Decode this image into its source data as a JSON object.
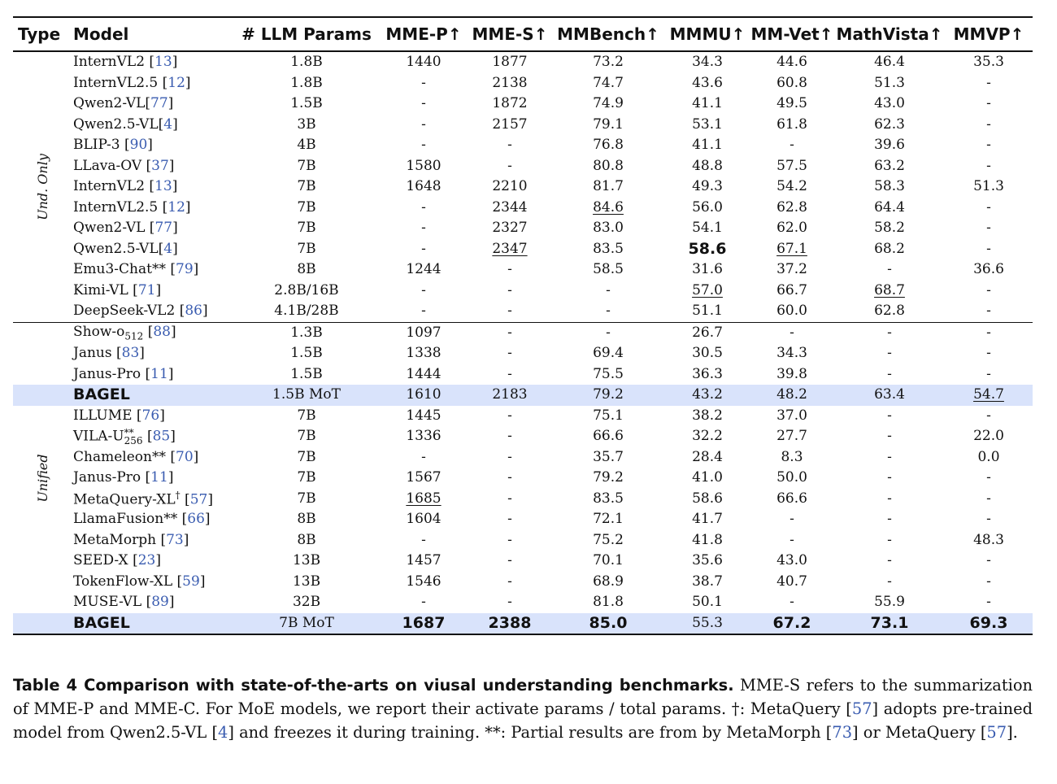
{
  "columns": [
    "Type",
    "Model",
    "# LLM Params",
    "MME-P↑",
    "MME-S↑",
    "MMBench↑",
    "MMMU↑",
    "MM-Vet↑",
    "MathVista↑",
    "MMVP↑"
  ],
  "groups": [
    {
      "label": "Und. Only",
      "rows": [
        {
          "name": "InternVL2 ",
          "ref": "13",
          "params": "1.8B",
          "values": [
            "1440",
            "1877",
            "73.2",
            "34.3",
            "44.6",
            "46.4",
            "35.3"
          ]
        },
        {
          "name": "InternVL2.5 ",
          "ref": "12",
          "params": "1.8B",
          "values": [
            "-",
            "2138",
            "74.7",
            "43.6",
            "60.8",
            "51.3",
            "-"
          ]
        },
        {
          "name": "Qwen2-VL",
          "ref": "77",
          "params": "1.5B",
          "values": [
            "-",
            "1872",
            "74.9",
            "41.1",
            "49.5",
            "43.0",
            "-"
          ]
        },
        {
          "name": "Qwen2.5-VL",
          "ref": "4",
          "params": "3B",
          "values": [
            "-",
            "2157",
            "79.1",
            "53.1",
            "61.8",
            "62.3",
            "-"
          ]
        },
        {
          "name": "BLIP-3 ",
          "ref": "90",
          "params": "4B",
          "values": [
            "-",
            "-",
            "76.8",
            "41.1",
            "-",
            "39.6",
            "-"
          ]
        },
        {
          "name": "LLava-OV ",
          "ref": "37",
          "params": "7B",
          "values": [
            "1580",
            "-",
            "80.8",
            "48.8",
            "57.5",
            "63.2",
            "-"
          ]
        },
        {
          "name": "InternVL2 ",
          "ref": "13",
          "params": "7B",
          "values": [
            "1648",
            "2210",
            "81.7",
            "49.3",
            "54.2",
            "58.3",
            "51.3"
          ]
        },
        {
          "name": "InternVL2.5 ",
          "ref": "12",
          "params": "7B",
          "values": [
            "-",
            "2344",
            "84.6",
            "56.0",
            "62.8",
            "64.4",
            "-"
          ],
          "underline": [
            2
          ]
        },
        {
          "name": "Qwen2-VL ",
          "ref": "77",
          "params": "7B",
          "values": [
            "-",
            "2327",
            "83.0",
            "54.1",
            "62.0",
            "58.2",
            "-"
          ]
        },
        {
          "name": "Qwen2.5-VL",
          "ref": "4",
          "params": "7B",
          "values": [
            "-",
            "2347",
            "83.5",
            "58.6",
            "67.1",
            "68.2",
            "-"
          ],
          "underline": [
            1,
            4
          ],
          "bold": [
            3
          ]
        },
        {
          "name": "Emu3-Chat** ",
          "ref": "79",
          "params": "8B",
          "values": [
            "1244",
            "-",
            "58.5",
            "31.6",
            "37.2",
            "-",
            "36.6"
          ]
        },
        {
          "name": "Kimi-VL ",
          "ref": "71",
          "params": "2.8B/16B",
          "values": [
            "-",
            "-",
            "-",
            "57.0",
            "66.7",
            "68.7",
            "-"
          ],
          "underline": [
            3,
            5
          ]
        },
        {
          "name": "DeepSeek-VL2 ",
          "ref": "86",
          "params": "4.1B/28B",
          "values": [
            "-",
            "-",
            "-",
            "51.1",
            "60.0",
            "62.8",
            "-"
          ]
        }
      ]
    },
    {
      "label": "Unified",
      "rows": [
        {
          "name": "Show-o",
          "sub": "512",
          "after": " ",
          "ref": "88",
          "params": "1.3B",
          "values": [
            "1097",
            "-",
            "-",
            "26.7",
            "-",
            "-",
            "-"
          ]
        },
        {
          "name": "Janus ",
          "ref": "83",
          "params": "1.5B",
          "values": [
            "1338",
            "-",
            "69.4",
            "30.5",
            "34.3",
            "-",
            "-"
          ]
        },
        {
          "name": "Janus-Pro ",
          "ref": "11",
          "params": "1.5B",
          "values": [
            "1444",
            "-",
            "75.5",
            "36.3",
            "39.8",
            "-",
            "-"
          ]
        },
        {
          "name": "BAGEL",
          "ref": "",
          "params": "1.5B MoT",
          "values": [
            "1610",
            "2183",
            "79.2",
            "43.2",
            "48.2",
            "63.4",
            "54.7"
          ],
          "highlight": true,
          "underline": [
            6
          ]
        },
        {
          "name": "ILLUME ",
          "ref": "76",
          "params": "7B",
          "values": [
            "1445",
            "-",
            "75.1",
            "38.2",
            "37.0",
            "-",
            "-"
          ]
        },
        {
          "name": "VILA-U",
          "sup": "**",
          "sub": "256",
          "after": " ",
          "ref": "85",
          "params": "7B",
          "values": [
            "1336",
            "-",
            "66.6",
            "32.2",
            "27.7",
            "-",
            "22.0"
          ]
        },
        {
          "name": "Chameleon** ",
          "ref": "70",
          "params": "7B",
          "values": [
            "-",
            "-",
            "35.7",
            "28.4",
            "8.3",
            "-",
            "0.0"
          ]
        },
        {
          "name": "Janus-Pro ",
          "ref": "11",
          "params": "7B",
          "values": [
            "1567",
            "-",
            "79.2",
            "41.0",
            "50.0",
            "-",
            "-"
          ]
        },
        {
          "name": "MetaQuery-XL",
          "sup": "†",
          "after": " ",
          "ref": "57",
          "params": "7B",
          "values": [
            "1685",
            "-",
            "83.5",
            "58.6",
            "66.6",
            "-",
            "-"
          ],
          "underline": [
            0
          ]
        },
        {
          "name": "LlamaFusion** ",
          "ref": "66",
          "params": "8B",
          "values": [
            "1604",
            "-",
            "72.1",
            "41.7",
            "-",
            "-",
            "-"
          ]
        },
        {
          "name": "MetaMorph ",
          "ref": "73",
          "params": "8B",
          "values": [
            "-",
            "-",
            "75.2",
            "41.8",
            "-",
            "-",
            "48.3"
          ]
        },
        {
          "name": "SEED-X ",
          "ref": "23",
          "params": "13B",
          "values": [
            "1457",
            "-",
            "70.1",
            "35.6",
            "43.0",
            "-",
            "-"
          ]
        },
        {
          "name": "TokenFlow-XL ",
          "ref": "59",
          "params": "13B",
          "values": [
            "1546",
            "-",
            "68.9",
            "38.7",
            "40.7",
            "-",
            "-"
          ]
        },
        {
          "name": "MUSE-VL ",
          "ref": "89",
          "params": "32B",
          "values": [
            "-",
            "-",
            "81.8",
            "50.1",
            "-",
            "55.9",
            "-"
          ]
        },
        {
          "name": "BAGEL",
          "ref": "",
          "params": "7B MoT",
          "values": [
            "1687",
            "2388",
            "85.0",
            "55.3",
            "67.2",
            "73.1",
            "69.3"
          ],
          "highlight": true,
          "bold": [
            0,
            1,
            2,
            4,
            5,
            6
          ]
        }
      ]
    }
  ],
  "caption": {
    "title": "Table 4  Comparison with state-of-the-arts on viusal understanding benchmarks.",
    "p1": " MME-S refers to the summarization of MME-P and MME-C. For MoE models, we report their activate params / total params. †: MetaQuery [",
    "ref1": "57",
    "p2": "] adopts pre-trained model from Qwen2.5-VL [",
    "ref2": "4",
    "p3": "] and freezes it during training. **: Partial results are from by MetaMorph [",
    "ref3": "73",
    "p4": "] or MetaQuery [",
    "ref4": "57",
    "p5": "]."
  }
}
